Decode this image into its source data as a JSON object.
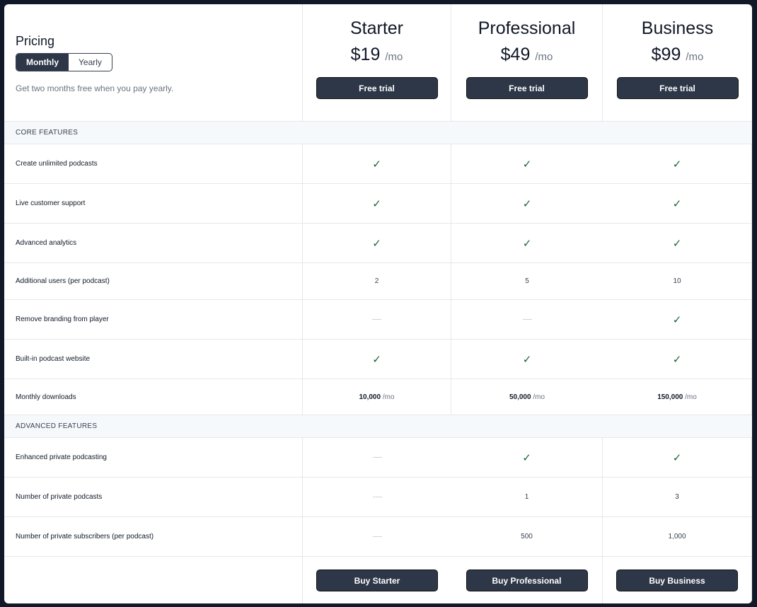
{
  "intro": {
    "title": "Pricing",
    "toggle": [
      "Monthly",
      "Yearly"
    ],
    "note": "Get two months free when you pay yearly."
  },
  "plans": [
    {
      "name": "Starter",
      "price": "$19",
      "per": "/mo",
      "trial": "Free trial",
      "buy": "Buy Starter"
    },
    {
      "name": "Professional",
      "price": "$49",
      "per": "/mo",
      "trial": "Free trial",
      "buy": "Buy Professional"
    },
    {
      "name": "Business",
      "price": "$99",
      "per": "/mo",
      "trial": "Free trial",
      "buy": "Buy Business"
    }
  ],
  "colors": {
    "accent": "#2d3748",
    "check": "#166534",
    "section_bg": "#f6f9fc"
  },
  "sections": [
    {
      "title": "CORE FEATURES",
      "rows": [
        {
          "label": "Create unlimited podcasts",
          "values": [
            true,
            true,
            true
          ],
          "h": 56
        },
        {
          "label": "Live customer support",
          "values": [
            true,
            true,
            true
          ],
          "h": 56
        },
        {
          "label": "Advanced analytics",
          "values": [
            true,
            true,
            true
          ],
          "h": 56
        },
        {
          "label": "Additional users (per podcast)",
          "values": [
            "2",
            "5",
            "10"
          ],
          "h": 52
        },
        {
          "label": "Remove branding from player",
          "values": [
            false,
            false,
            true
          ],
          "h": 56
        },
        {
          "label": "Built-in podcast website",
          "values": [
            true,
            true,
            true
          ],
          "h": 56
        },
        {
          "label": "Monthly downloads",
          "values": [
            {
              "num": "10,000",
              "unit": "/mo"
            },
            {
              "num": "50,000",
              "unit": "/mo"
            },
            {
              "num": "150,000",
              "unit": "/mo"
            }
          ],
          "h": 51
        }
      ]
    },
    {
      "title": "ADVANCED FEATURES",
      "rows": [
        {
          "label": "Enhanced private podcasting",
          "values": [
            false,
            true,
            true
          ],
          "h": 56
        },
        {
          "label": "Number of private podcasts",
          "values": [
            false,
            "1",
            "3"
          ],
          "h": 56
        },
        {
          "label": "Number of private subscribers (per podcast)",
          "values": [
            false,
            "500",
            "1,000"
          ],
          "h": 56
        }
      ]
    }
  ]
}
